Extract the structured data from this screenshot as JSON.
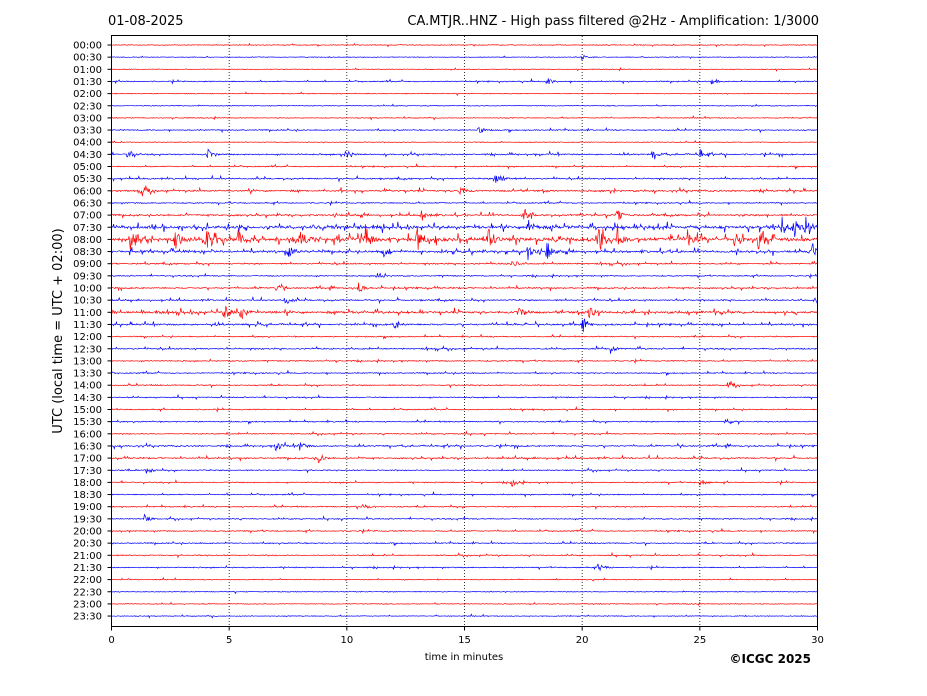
{
  "header": {
    "date": "01-08-2025",
    "title": "CA.MTJR..HNZ - High pass filtered @2Hz - Amplification: 1/3000"
  },
  "footer": {
    "copyright": "©ICGC 2025"
  },
  "colors": {
    "odd_rows": "#ff0000",
    "even_rows": "#0000ff",
    "axis": "#000000",
    "grid": "#000000"
  },
  "chart_data": {
    "type": "line",
    "xlabel": "time in minutes",
    "ylabel": "UTC (local time = UTC + 02:00)",
    "xlim": [
      0,
      30
    ],
    "xticks": [
      0,
      5,
      10,
      15,
      20,
      25,
      30
    ],
    "grid": "vertical dotted lines every 5 minutes",
    "rows": [
      "00:00",
      "00:30",
      "01:00",
      "01:30",
      "02:00",
      "02:30",
      "03:00",
      "03:30",
      "04:00",
      "04:30",
      "05:00",
      "05:30",
      "06:00",
      "06:30",
      "07:00",
      "07:30",
      "08:00",
      "08:30",
      "09:00",
      "09:30",
      "10:00",
      "10:30",
      "11:00",
      "11:30",
      "12:00",
      "12:30",
      "13:00",
      "13:30",
      "14:00",
      "14:30",
      "15:00",
      "15:30",
      "16:00",
      "16:30",
      "17:00",
      "17:30",
      "18:00",
      "18:30",
      "19:00",
      "19:30",
      "20:00",
      "20:30",
      "21:00",
      "21:30",
      "22:00",
      "22:30",
      "23:00",
      "23:30"
    ],
    "row_colors": "alternating blue and red traces",
    "amplitude_level": [
      0,
      0.5,
      1,
      2,
      1,
      1,
      1,
      2,
      1,
      3,
      2,
      3,
      4,
      2,
      4,
      8,
      10,
      6,
      3,
      2,
      3,
      3,
      6,
      4,
      2,
      3,
      2,
      2,
      2,
      2,
      2,
      2,
      2,
      3,
      3,
      2,
      2,
      2,
      2,
      2,
      2,
      2,
      2,
      2,
      1,
      1,
      1,
      0
    ],
    "events": [
      {
        "row": "00:30",
        "minutes": [
          20
        ]
      },
      {
        "row": "01:30",
        "minutes": [
          18.5,
          25.5
        ]
      },
      {
        "row": "03:30",
        "minutes": [
          15.6
        ]
      },
      {
        "row": "04:30",
        "minutes": [
          0.7,
          4.1,
          10,
          23,
          25
        ]
      },
      {
        "row": "05:30",
        "minutes": [
          16.3,
          16.6
        ]
      },
      {
        "row": "06:00",
        "minutes": [
          1.3,
          14.8
        ]
      },
      {
        "row": "07:00",
        "minutes": [
          13.2,
          17.5,
          21.5
        ]
      },
      {
        "row": "07:30",
        "minutes": [
          17.7,
          28.5,
          29.0,
          29.5
        ]
      },
      {
        "row": "08:00",
        "minutes": [
          0.8,
          2.7,
          4.0,
          5.4,
          8.0,
          10.8,
          13.0,
          16.0,
          20.7,
          21.5,
          24.5,
          26.5,
          27.5
        ]
      },
      {
        "row": "08:30",
        "minutes": [
          7.5,
          11.5,
          17.7,
          18.5,
          29.8
        ]
      },
      {
        "row": "09:00",
        "minutes": [
          17.0
        ]
      },
      {
        "row": "09:30",
        "minutes": [
          11.3
        ]
      },
      {
        "row": "10:00",
        "minutes": [
          7.0,
          10.5
        ]
      },
      {
        "row": "10:30",
        "minutes": [
          7.4,
          29.9
        ]
      },
      {
        "row": "11:00",
        "minutes": [
          4.8,
          5.5,
          17.3,
          20.3
        ]
      },
      {
        "row": "11:30",
        "minutes": [
          12.0,
          20.0
        ]
      },
      {
        "row": "12:30",
        "minutes": [
          21.2
        ]
      },
      {
        "row": "14:00",
        "minutes": [
          26.2
        ]
      },
      {
        "row": "15:30",
        "minutes": [
          26.1
        ]
      },
      {
        "row": "16:30",
        "minutes": [
          7.0,
          8.0
        ]
      },
      {
        "row": "17:00",
        "minutes": [
          8.8
        ]
      },
      {
        "row": "17:30",
        "minutes": [
          1.5
        ]
      },
      {
        "row": "18:00",
        "minutes": [
          17.0,
          25.0
        ]
      },
      {
        "row": "19:00",
        "minutes": [
          10.7
        ]
      },
      {
        "row": "19:30",
        "minutes": [
          1.4
        ]
      },
      {
        "row": "21:30",
        "minutes": [
          20.7
        ]
      }
    ]
  }
}
